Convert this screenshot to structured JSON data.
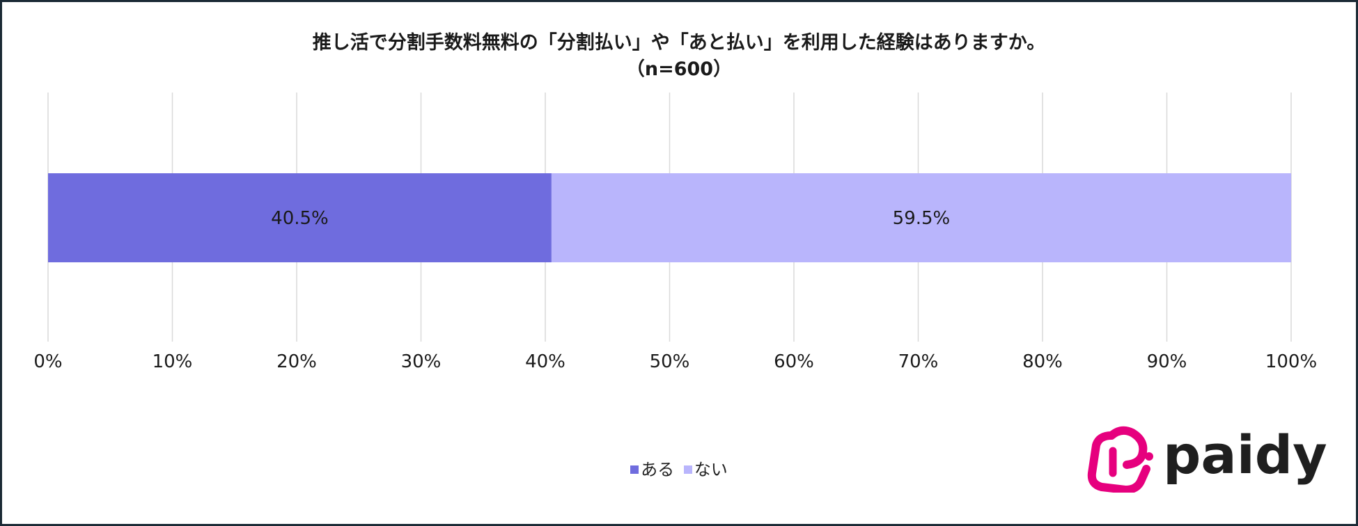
{
  "chart_data": {
    "type": "bar",
    "orientation": "horizontal",
    "stacked": true,
    "title": "推し活で分割手数料無料の「分割払い」や「あと払い」を利用した経験はありますか。",
    "subtitle": "（n=600）",
    "series": [
      {
        "name": "ある",
        "values": [
          40.5
        ],
        "label": "40.5%",
        "color": "#6f6cde"
      },
      {
        "name": "ない",
        "values": [
          59.5
        ],
        "label": "59.5%",
        "color": "#b9b5fc"
      }
    ],
    "xlim": [
      0,
      100
    ],
    "xticks": [
      0,
      10,
      20,
      30,
      40,
      50,
      60,
      70,
      80,
      90,
      100
    ],
    "xtick_labels": [
      "0%",
      "10%",
      "20%",
      "30%",
      "40%",
      "50%",
      "60%",
      "70%",
      "80%",
      "90%",
      "100%"
    ],
    "grid": true,
    "legend_position": "bottom"
  },
  "logo": {
    "text": "paidy",
    "icon": "paidy-logo-icon",
    "brand_color": "#e6007e"
  }
}
